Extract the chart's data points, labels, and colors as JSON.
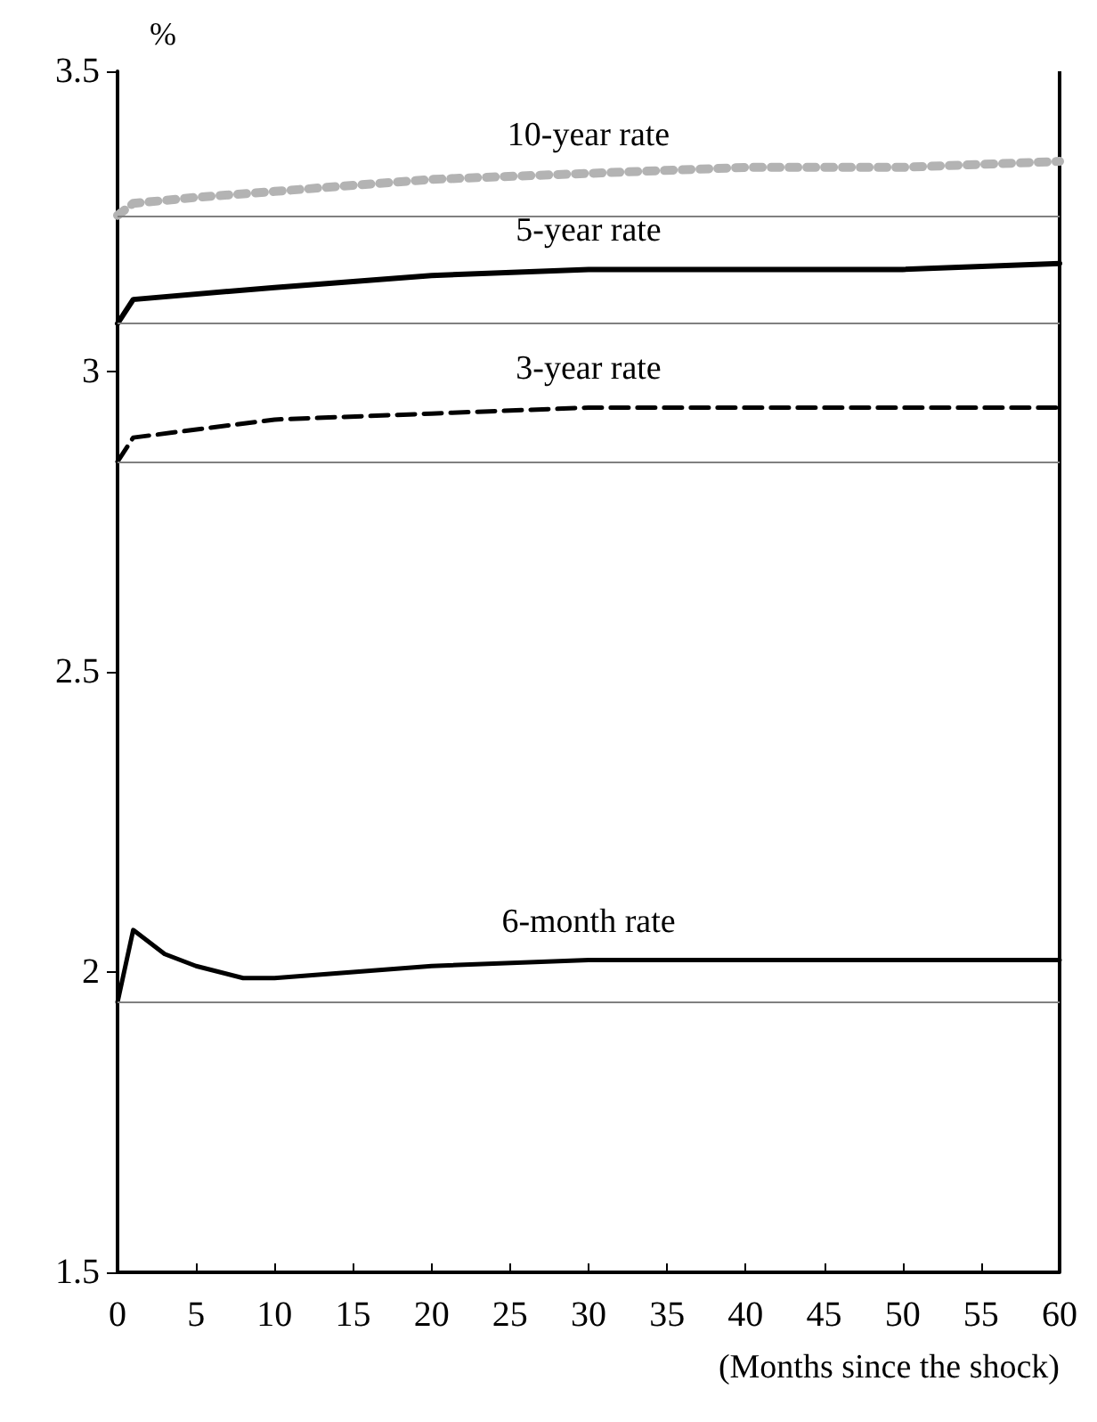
{
  "chart_data": {
    "type": "line",
    "ylabel": "%",
    "xlabel": "(Months since the shock)",
    "xlim": [
      0,
      60
    ],
    "xticks": [
      0,
      5,
      10,
      15,
      20,
      25,
      30,
      35,
      40,
      45,
      50,
      55,
      60
    ],
    "ylim": [
      1.5,
      3.5
    ],
    "yticks": [
      1.5,
      2,
      2.5,
      3,
      3.5
    ],
    "grid": false,
    "legend": false,
    "marker": "none",
    "series": [
      {
        "name": "10-year rate",
        "color": "#b3b3b3",
        "line_style": "dotted",
        "x": [
          0,
          1,
          5,
          10,
          20,
          30,
          40,
          50,
          60
        ],
        "values": [
          3.26,
          3.28,
          3.29,
          3.3,
          3.32,
          3.33,
          3.34,
          3.34,
          3.35
        ]
      },
      {
        "name": "5-year rate",
        "color": "#000000",
        "line_style": "solid",
        "x": [
          0,
          1,
          10,
          20,
          30,
          40,
          50,
          60
        ],
        "values": [
          3.08,
          3.12,
          3.14,
          3.16,
          3.17,
          3.17,
          3.17,
          3.18
        ]
      },
      {
        "name": "3-year rate",
        "color": "#000000",
        "line_style": "dashed",
        "x": [
          0,
          1,
          10,
          20,
          30,
          40,
          50,
          60
        ],
        "values": [
          2.85,
          2.89,
          2.92,
          2.93,
          2.94,
          2.94,
          2.94,
          2.94
        ]
      },
      {
        "name": "6-month rate",
        "color": "#000000",
        "line_style": "solid",
        "x": [
          0,
          1,
          3,
          5,
          8,
          10,
          15,
          20,
          30,
          40,
          50,
          60
        ],
        "values": [
          1.95,
          2.07,
          2.03,
          2.01,
          1.99,
          1.99,
          2.0,
          2.01,
          2.02,
          2.02,
          2.02,
          2.02
        ]
      }
    ],
    "ref_lines": [
      {
        "axis": "y",
        "value": 3.26,
        "label": null,
        "color": "#808080"
      },
      {
        "axis": "y",
        "value": 3.08,
        "label": null,
        "color": "#808080"
      },
      {
        "axis": "y",
        "value": 2.85,
        "label": null,
        "color": "#808080"
      },
      {
        "axis": "y",
        "value": 1.95,
        "label": null,
        "color": "#808080"
      }
    ]
  }
}
